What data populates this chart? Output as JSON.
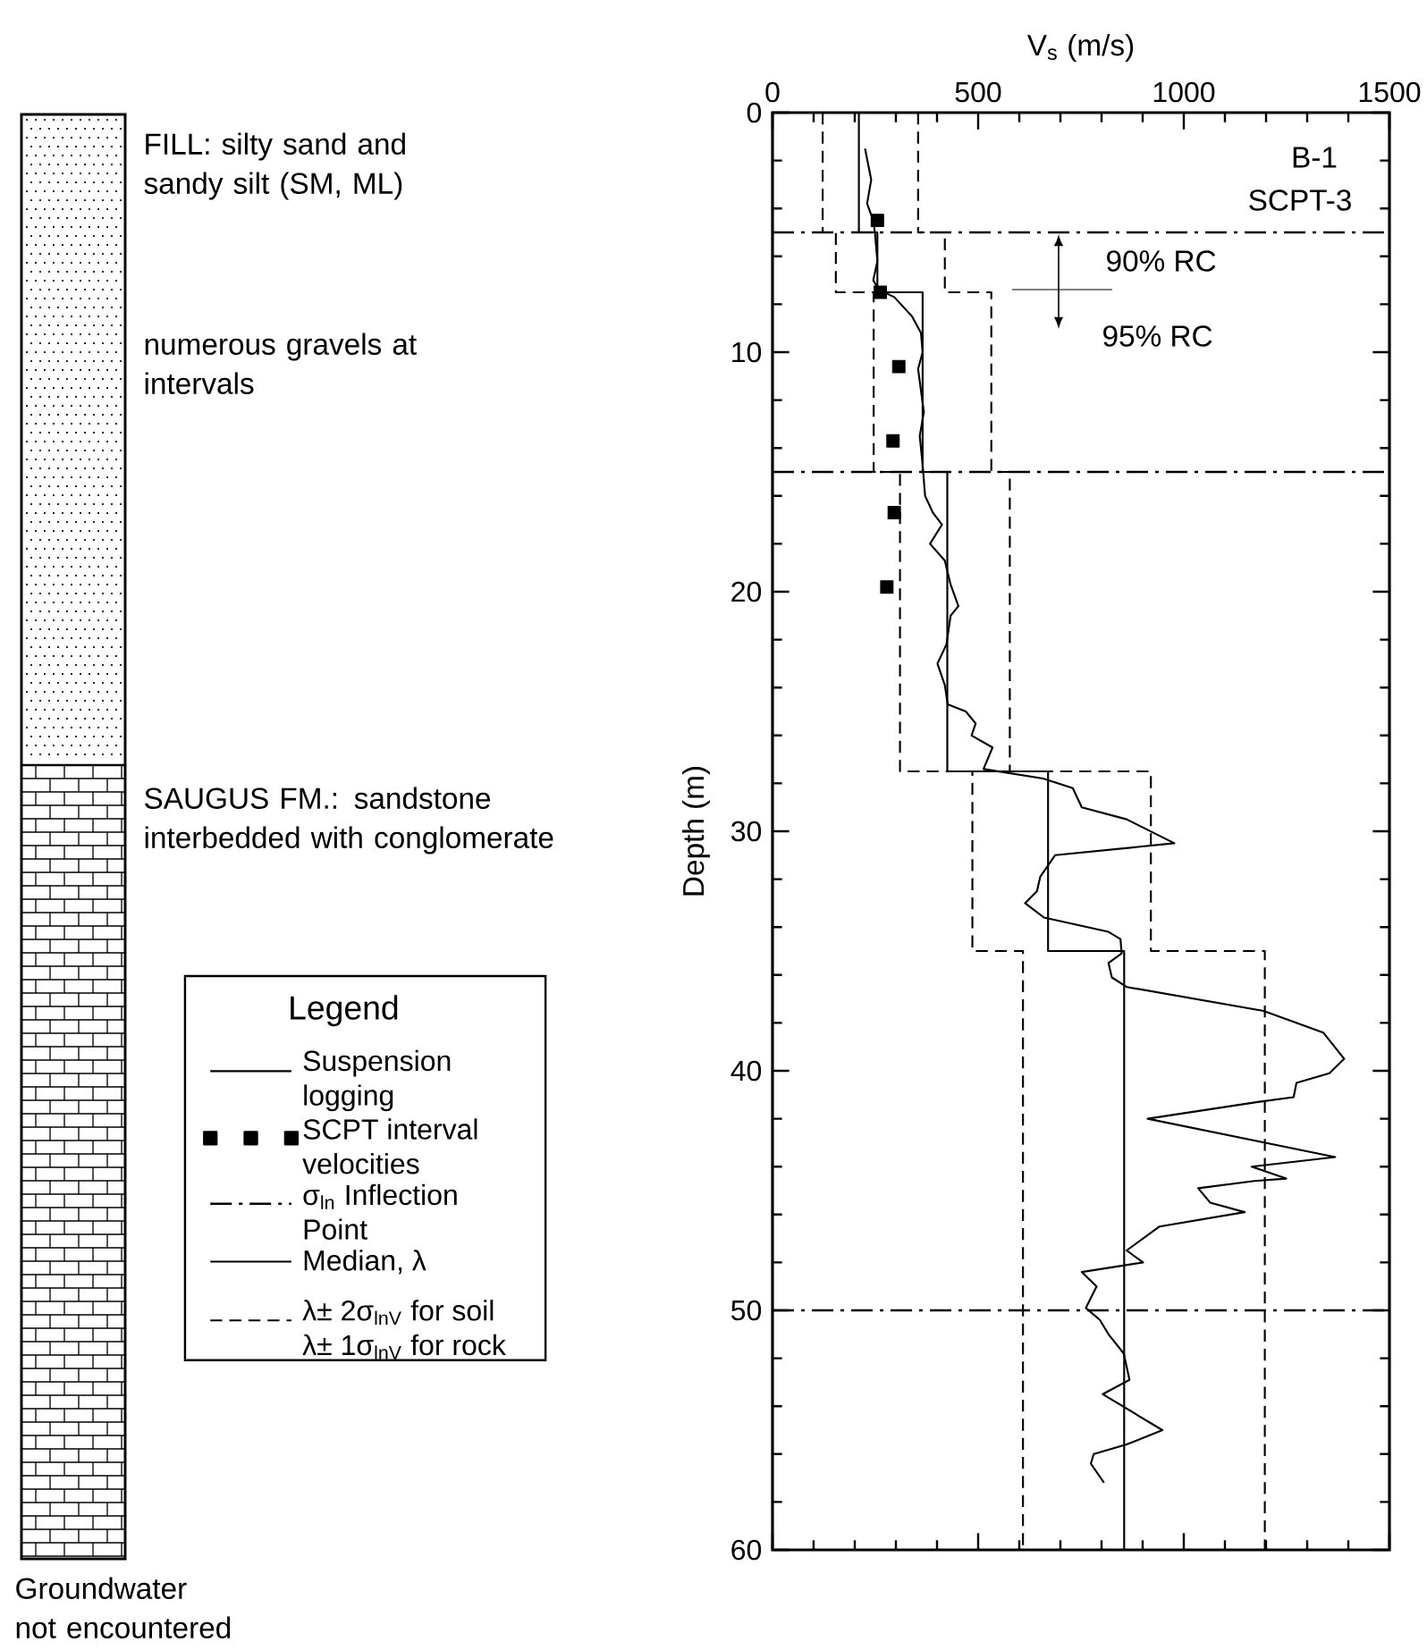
{
  "chart_data": {
    "type": "line",
    "xlabel": "V$_{s}$ (m/s)",
    "ylabel": "Depth (m)",
    "legend_title": "Legend",
    "legend": "left",
    "xlim": [
      0,
      1500
    ],
    "xticks": [
      0,
      500,
      1000,
      1500
    ],
    "ylim": [
      60,
      0
    ],
    "yticks": [
      0,
      10,
      20,
      30,
      40,
      50,
      60
    ],
    "annotations": [
      "B-1",
      "SCPT-3",
      "90% RC",
      "95% RC",
      "FILL: silty sand and sandy silt (SM, ML)",
      "numerous gravels at intervals",
      "SAUGUS FM.: sandstone interbedded with conglomerate",
      "Groundwater not encountered"
    ],
    "ref_lines": [
      {
        "axis": "y",
        "value": 5,
        "label": "σ$_{ln}$ Inflection Point"
      },
      {
        "axis": "y",
        "value": 15
      },
      {
        "axis": "y",
        "value": 50
      }
    ],
    "series": [
      {
        "name": "Suspension logging",
        "color": "#000000",
        "line_style": "solid",
        "x": [
          225,
          240,
          230,
          245,
          249,
          255,
          245,
          259,
          296,
          339,
          361,
          365,
          354,
          368,
          358,
          365,
          371,
          390,
          412,
          383,
          419,
          433,
          452,
          433,
          423,
          401,
          419,
          426,
          470,
          494,
          484,
          535,
          513,
          658,
          730,
          752,
          861,
          977,
          687,
          651,
          643,
          614,
          660,
          817,
          846,
          849,
          817,
          825,
          861,
          1194,
          1339,
          1390,
          1354,
          1274,
          1267,
          1180,
          912,
          1368,
          1165,
          1249,
          1172,
          1035,
          1064,
          1148,
          941,
          861,
          901,
          752,
          788,
          762,
          796,
          817,
          854,
          868,
          803,
          948,
          861,
          781,
          774,
          806
        ],
        "values": [
          1.5,
          2.8,
          3.8,
          4.5,
          5.0,
          6.2,
          7.0,
          7.4,
          7.7,
          8.5,
          9.2,
          10.0,
          10.7,
          12.5,
          13.5,
          14.7,
          16.0,
          16.7,
          17.2,
          18.0,
          18.7,
          19.7,
          20.6,
          21.0,
          22.2,
          23.0,
          23.9,
          24.7,
          25.0,
          25.5,
          26.0,
          26.5,
          27.4,
          27.8,
          28.2,
          29.0,
          29.5,
          30.5,
          31.0,
          31.9,
          32.5,
          33.0,
          33.6,
          34.2,
          34.5,
          35.1,
          35.5,
          36.1,
          36.5,
          37.5,
          38.4,
          39.5,
          40.1,
          40.5,
          41.1,
          41.3,
          42.0,
          43.6,
          44.0,
          44.5,
          44.6,
          44.9,
          45.5,
          45.9,
          46.5,
          47.5,
          48.0,
          48.4,
          49.0,
          49.9,
          50.4,
          51.0,
          51.8,
          52.9,
          53.5,
          55.0,
          55.6,
          56.0,
          56.4,
          57.2
        ]
      },
      {
        "name": "SCPT interval velocities",
        "type": "scatter",
        "color": "#000000",
        "marker": "square",
        "x": [
          255,
          262,
          307,
          293,
          296,
          278
        ],
        "values": [
          4.5,
          7.5,
          10.6,
          13.7,
          16.7,
          19.8
        ]
      },
      {
        "name": "Median, λ",
        "color": "#000000",
        "line_style": "solid",
        "x": [
          210,
          210,
          255,
          255,
          365,
          365,
          425,
          425,
          670,
          670,
          855,
          855
        ],
        "values": [
          0,
          5,
          5,
          7.5,
          7.5,
          15,
          15,
          27.5,
          27.5,
          35,
          35,
          60
        ]
      },
      {
        "name": "λ± 2σ$_{lnV}$ for soil λ± 1σ$_{lnV}$ for rock",
        "color": "#000000",
        "line_style": "dashed",
        "x": [
          122,
          122,
          154,
          154,
          246,
          246,
          310,
          310,
          486,
          486,
          609,
          609
        ],
        "values": [
          0,
          5,
          5,
          7.5,
          7.5,
          15,
          15,
          27.5,
          27.5,
          35,
          35,
          60
        ]
      },
      {
        "color": "#000000",
        "line_style": "dashed",
        "x": [
          354,
          354,
          419,
          419,
          532,
          532,
          577,
          577,
          920,
          920,
          1197,
          1197
        ],
        "values": [
          0,
          5,
          5,
          7.5,
          7.5,
          15,
          15,
          27.5,
          27.5,
          35,
          35,
          60
        ]
      }
    ]
  }
}
